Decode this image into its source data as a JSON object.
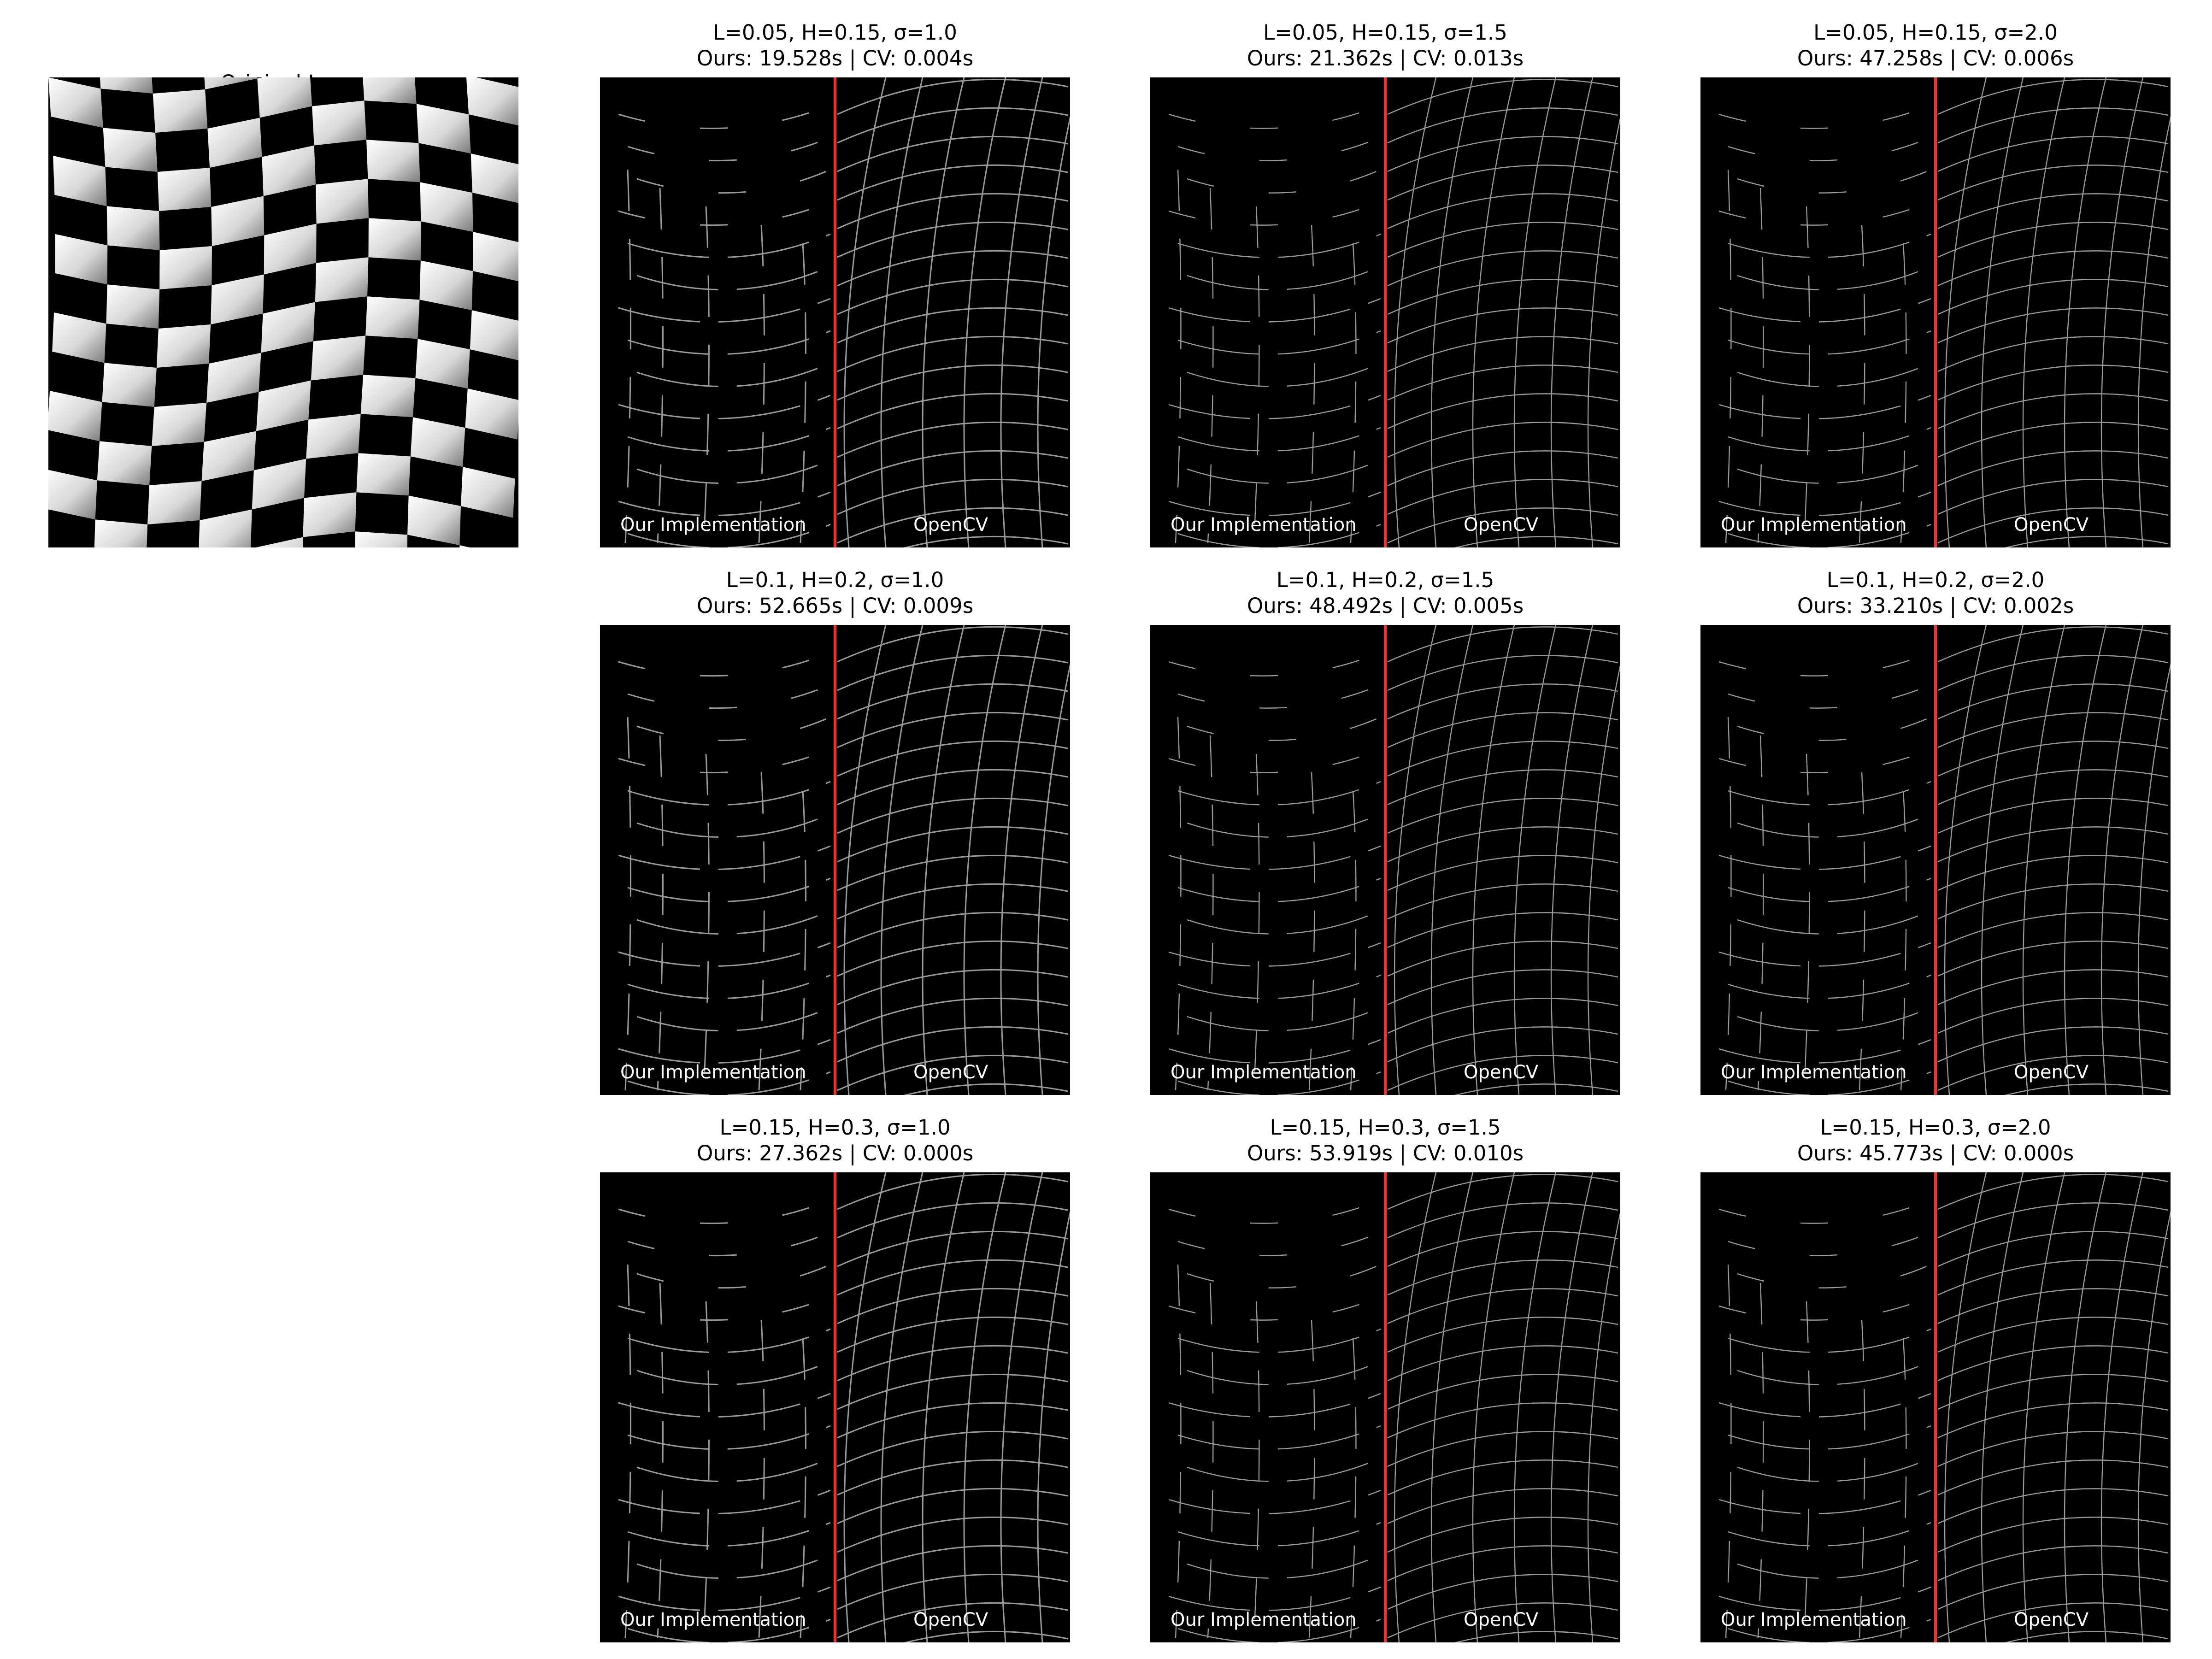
{
  "original": {
    "title": "Original Image"
  },
  "labels": {
    "ours": "Our Implementation",
    "cv": "OpenCV"
  },
  "colors": {
    "separator": "#ff2a2a",
    "edge": "#9a9a9a",
    "panel_bg": "#000000"
  },
  "panels": [
    {
      "title_line1": "L=0.05, H=0.15, σ=1.0",
      "title_line2": "Ours: 19.528s | CV: 0.004s"
    },
    {
      "title_line1": "L=0.05, H=0.15, σ=1.5",
      "title_line2": "Ours: 21.362s | CV: 0.013s"
    },
    {
      "title_line1": "L=0.05, H=0.15, σ=2.0",
      "title_line2": "Ours: 47.258s | CV: 0.006s"
    },
    {
      "title_line1": "L=0.1, H=0.2, σ=1.0",
      "title_line2": "Ours: 52.665s | CV: 0.009s"
    },
    {
      "title_line1": "L=0.1, H=0.2, σ=1.5",
      "title_line2": "Ours: 48.492s | CV: 0.005s"
    },
    {
      "title_line1": "L=0.1, H=0.2, σ=2.0",
      "title_line2": "Ours: 33.210s | CV: 0.002s"
    },
    {
      "title_line1": "L=0.15, H=0.3, σ=1.0",
      "title_line2": "Ours: 27.362s | CV: 0.000s"
    },
    {
      "title_line1": "L=0.15, H=0.3, σ=1.5",
      "title_line2": "Ours: 53.919s | CV: 0.010s"
    },
    {
      "title_line1": "L=0.15, H=0.3, σ=2.0",
      "title_line2": "Ours: 45.773s | CV: 0.000s"
    }
  ]
}
